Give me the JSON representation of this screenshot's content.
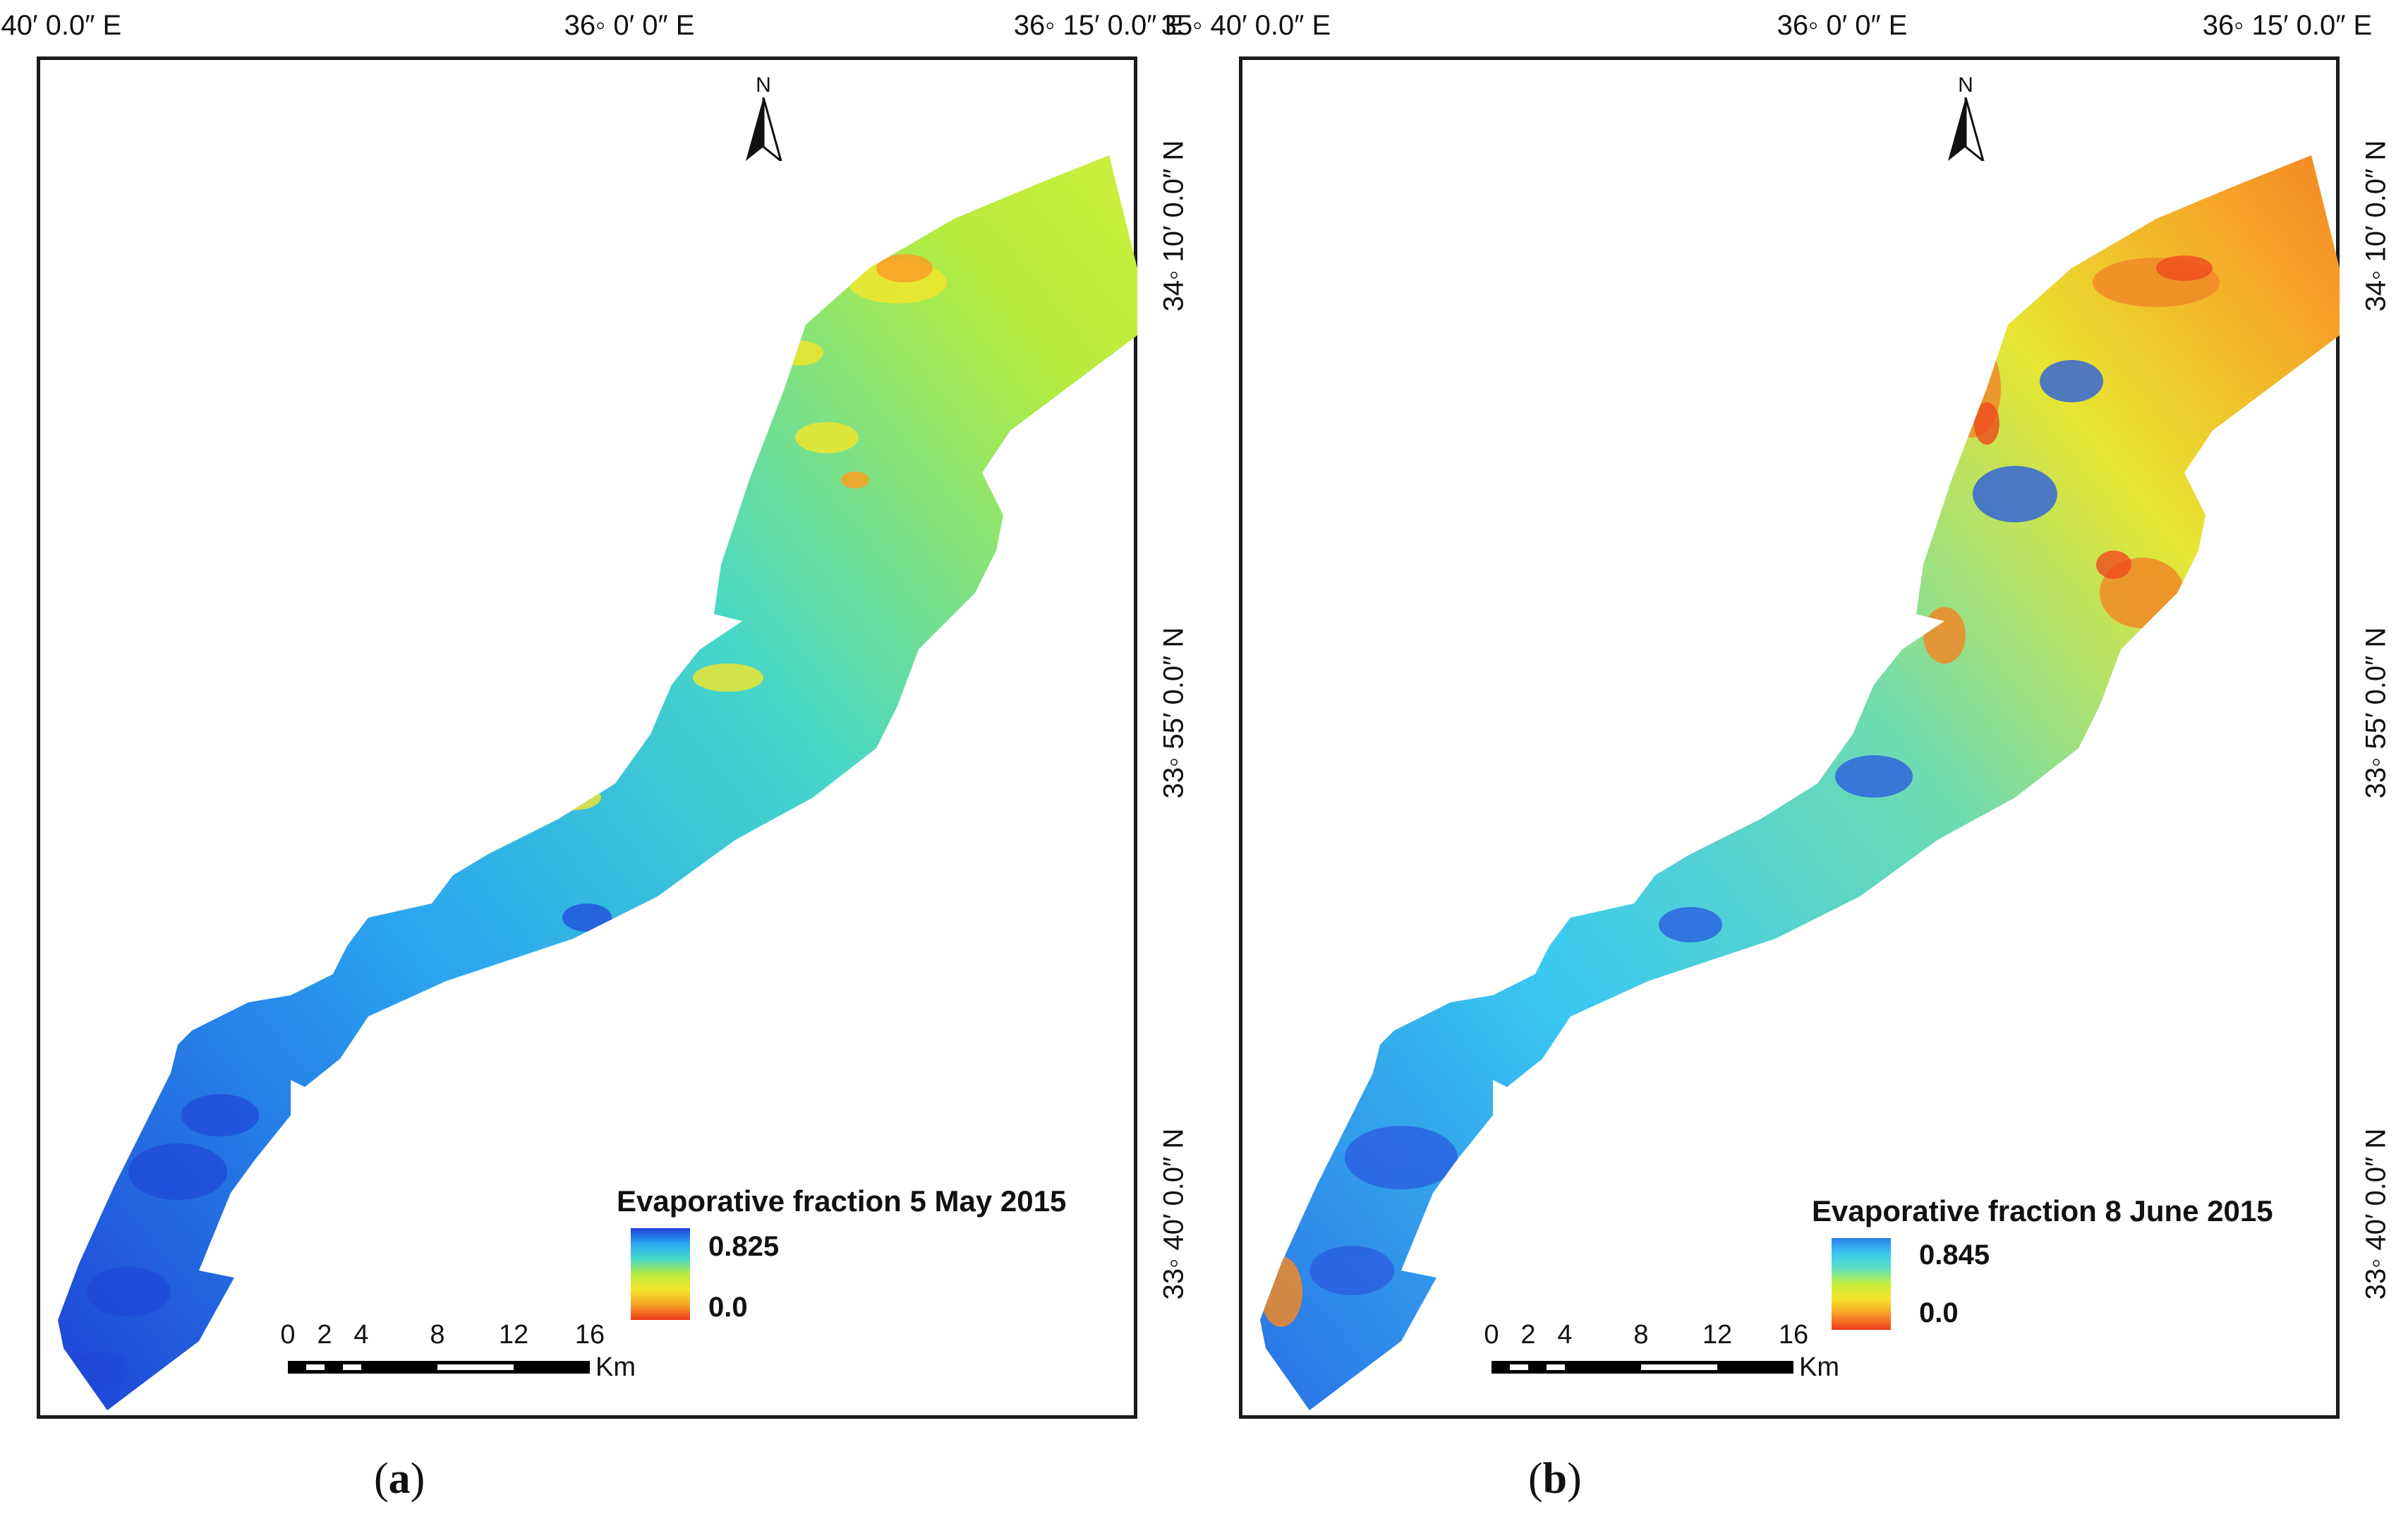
{
  "panels": [
    {
      "id": "a",
      "label_open": "(",
      "label_letter": "a",
      "label_close": ")",
      "legend_title": "Evaporative fraction 5 May 2015",
      "legend_max": "0.825",
      "legend_min": "0.0",
      "color_ramp": [
        "#1f3fd6",
        "#2aa6f0",
        "#46d7c8",
        "#b6ec3e",
        "#f5e62a",
        "#f7a327",
        "#ef3a1d"
      ]
    },
    {
      "id": "b",
      "label_open": "(",
      "label_letter": "b",
      "label_close": ")",
      "legend_title": "Evaporative fraction 8 June 2015",
      "legend_max": "0.845",
      "legend_min": "0.0",
      "color_ramp": [
        "#2a7fe6",
        "#39c8f0",
        "#5ee0c0",
        "#c5ee3c",
        "#f6e32a",
        "#f79a27",
        "#ef3a1d"
      ]
    }
  ],
  "coords": {
    "lon_left": "35◦ 40′ 0.0″ E",
    "lon_mid": "36◦ 0′ 0″ E",
    "lon_right": "36◦ 15′ 0.0″ E",
    "lat_top": "34◦ 10′ 0.0″ N",
    "lat_mid": "33◦ 55′ 0.0″ N",
    "lat_bottom": "33◦ 40′ 0.0″ N"
  },
  "north_arrow": {
    "letter": "N",
    "icon": "north-arrow-icon"
  },
  "scale_bar": {
    "ticks": [
      "0",
      "2",
      "4",
      "8",
      "12",
      "16"
    ],
    "unit": "Km"
  }
}
